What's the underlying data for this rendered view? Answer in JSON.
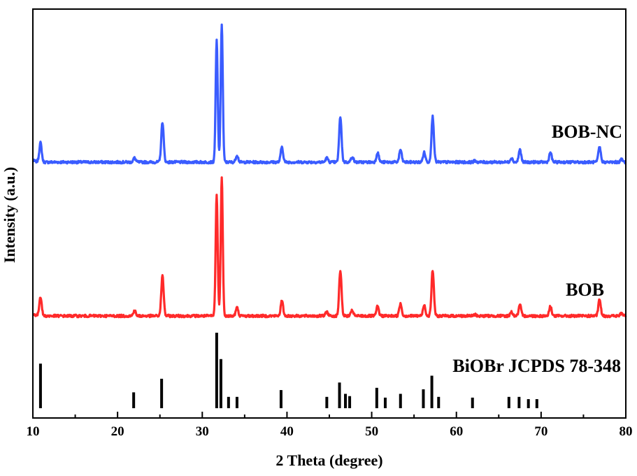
{
  "chart_data": {
    "type": "line",
    "xlabel": "2 Theta (degree)",
    "ylabel": "Intensity (a.u.)",
    "xlim": [
      10,
      80
    ],
    "x_ticks": [
      "10",
      "20",
      "30",
      "40",
      "50",
      "60",
      "70",
      "80"
    ],
    "y_ticks_labeled": false,
    "grid": false,
    "legend": "none (labels placed beside curves)",
    "colors": {
      "BOB-NC": "#3a5cff",
      "BOB": "#ff2a2a",
      "reference": "#000000"
    },
    "series": [
      {
        "name": "BOB-NC",
        "style": "line",
        "baseline": 0,
        "peaks": [
          {
            "x": 10.9,
            "y": 0.14
          },
          {
            "x": 22.0,
            "y": 0.03
          },
          {
            "x": 25.3,
            "y": 0.29
          },
          {
            "x": 31.7,
            "y": 0.88
          },
          {
            "x": 32.3,
            "y": 1.0
          },
          {
            "x": 34.1,
            "y": 0.05
          },
          {
            "x": 39.4,
            "y": 0.11
          },
          {
            "x": 44.7,
            "y": 0.03
          },
          {
            "x": 46.3,
            "y": 0.33
          },
          {
            "x": 47.7,
            "y": 0.04
          },
          {
            "x": 50.7,
            "y": 0.07
          },
          {
            "x": 53.4,
            "y": 0.09
          },
          {
            "x": 56.2,
            "y": 0.07
          },
          {
            "x": 57.2,
            "y": 0.33
          },
          {
            "x": 62.2,
            "y": 0.01
          },
          {
            "x": 66.5,
            "y": 0.03
          },
          {
            "x": 67.5,
            "y": 0.09
          },
          {
            "x": 71.1,
            "y": 0.07
          },
          {
            "x": 76.9,
            "y": 0.11
          },
          {
            "x": 79.5,
            "y": 0.02
          }
        ]
      },
      {
        "name": "BOB",
        "style": "line",
        "baseline": 0,
        "peaks": [
          {
            "x": 10.9,
            "y": 0.14
          },
          {
            "x": 22.0,
            "y": 0.04
          },
          {
            "x": 25.3,
            "y": 0.29
          },
          {
            "x": 31.7,
            "y": 0.88
          },
          {
            "x": 32.3,
            "y": 1.0
          },
          {
            "x": 34.1,
            "y": 0.06
          },
          {
            "x": 39.4,
            "y": 0.11
          },
          {
            "x": 44.7,
            "y": 0.03
          },
          {
            "x": 46.3,
            "y": 0.33
          },
          {
            "x": 47.7,
            "y": 0.04
          },
          {
            "x": 50.7,
            "y": 0.07
          },
          {
            "x": 53.4,
            "y": 0.09
          },
          {
            "x": 56.2,
            "y": 0.08
          },
          {
            "x": 57.2,
            "y": 0.33
          },
          {
            "x": 62.2,
            "y": 0.01
          },
          {
            "x": 66.5,
            "y": 0.03
          },
          {
            "x": 67.5,
            "y": 0.08
          },
          {
            "x": 71.1,
            "y": 0.07
          },
          {
            "x": 76.9,
            "y": 0.12
          },
          {
            "x": 79.5,
            "y": 0.02
          }
        ]
      },
      {
        "name": "BiOBr JCPDS 78-348",
        "style": "stick",
        "x": [
          10.9,
          21.9,
          25.2,
          31.7,
          32.2,
          33.1,
          34.1,
          39.3,
          44.7,
          46.2,
          46.9,
          47.4,
          50.6,
          51.6,
          53.4,
          56.1,
          57.1,
          57.9,
          61.9,
          66.2,
          67.4,
          68.5,
          69.5
        ],
        "values": [
          0.59,
          0.21,
          0.39,
          1.0,
          0.65,
          0.15,
          0.15,
          0.24,
          0.15,
          0.34,
          0.19,
          0.16,
          0.27,
          0.14,
          0.19,
          0.25,
          0.43,
          0.15,
          0.14,
          0.15,
          0.15,
          0.12,
          0.12
        ]
      }
    ]
  }
}
